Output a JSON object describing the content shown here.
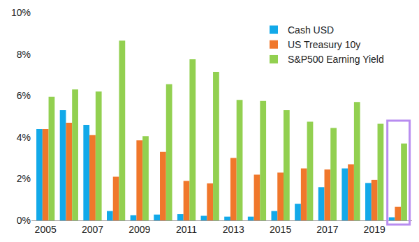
{
  "chart_data": {
    "type": "bar",
    "categories": [
      "2005",
      null,
      "2007",
      null,
      "2009",
      null,
      "2011",
      null,
      "2013",
      null,
      "2015",
      null,
      "2017",
      null,
      "2019",
      null
    ],
    "series": [
      {
        "name": "Cash USD",
        "color": "#12a9e9",
        "values": [
          4.4,
          5.3,
          4.6,
          0.45,
          0.25,
          0.28,
          0.3,
          0.22,
          0.18,
          0.18,
          0.45,
          0.8,
          1.6,
          2.5,
          1.8,
          0.15
        ]
      },
      {
        "name": "US Treasury 10y",
        "color": "#f0772b",
        "values": [
          4.4,
          4.7,
          4.1,
          2.1,
          3.85,
          3.3,
          1.9,
          1.78,
          3.0,
          2.2,
          2.3,
          2.5,
          2.45,
          2.7,
          1.95,
          0.65
        ]
      },
      {
        "name": "S&P500 Earning Yield",
        "color": "#92d050",
        "values": [
          5.95,
          6.3,
          6.2,
          8.65,
          4.05,
          6.55,
          7.75,
          7.15,
          5.8,
          5.75,
          5.3,
          4.75,
          4.45,
          5.7,
          4.65,
          3.7
        ]
      }
    ],
    "ylim": [
      0,
      10
    ],
    "yticks": [
      {
        "value": 0,
        "label": "0%"
      },
      {
        "value": 2,
        "label": "2%"
      },
      {
        "value": 4,
        "label": "4%"
      },
      {
        "value": 6,
        "label": "6%"
      },
      {
        "value": 8,
        "label": "8%"
      },
      {
        "value": 10,
        "label": "10%"
      }
    ],
    "grid": false,
    "legend": "top-right"
  }
}
